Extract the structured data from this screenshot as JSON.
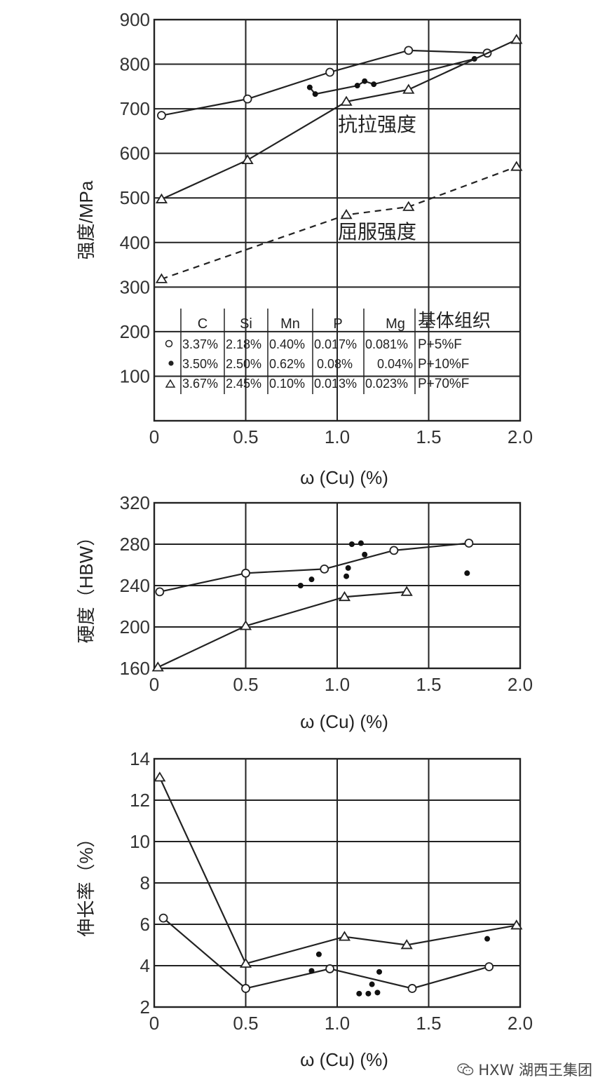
{
  "legend_table": {
    "headers": [
      "",
      "C",
      "Si",
      "Mn",
      "P",
      "Mg",
      "基体组织"
    ],
    "rows": [
      {
        "marker": "open-circle",
        "cells": [
          "3.37%",
          "2.18%",
          "0.40%",
          "0.017%",
          "0.081%",
          "P+5%F"
        ]
      },
      {
        "marker": "filled-dot",
        "cells": [
          "3.50%",
          "2.50%",
          "0.62%",
          "0.08%",
          "0.04%",
          "P+10%F"
        ]
      },
      {
        "marker": "triangle",
        "cells": [
          "3.67%",
          "2.45%",
          "0.10%",
          "0.013%",
          "0.023%",
          "P+70%F"
        ]
      }
    ]
  },
  "watermark": {
    "text": "HXW 湖西王集团",
    "icon": "wechat-icon"
  },
  "chart_data": [
    {
      "type": "line",
      "ylabel": "强度/MPa",
      "xlabel": "ω (Cu) (%)",
      "xlim": [
        0,
        2.0
      ],
      "ylim": [
        0,
        900
      ],
      "x_ticks": [
        "0",
        "0.5",
        "1.0",
        "1.5",
        "2.0"
      ],
      "y_ticks": [
        "100",
        "200",
        "300",
        "400",
        "500",
        "600",
        "700",
        "800",
        "900"
      ],
      "grid": true,
      "annotations": [
        "抗拉强度",
        "屈服强度"
      ],
      "series": [
        {
          "marker": "open-circle",
          "line": "solid",
          "points": [
            [
              0.04,
              685
            ],
            [
              0.51,
              722
            ],
            [
              0.96,
              782
            ],
            [
              1.39,
              831
            ],
            [
              1.82,
              825
            ]
          ]
        },
        {
          "marker": "filled-dot",
          "line": "solid",
          "points": [
            [
              0.85,
              748
            ],
            [
              0.88,
              733
            ],
            [
              1.11,
              752
            ],
            [
              1.15,
              762
            ],
            [
              1.2,
              755
            ],
            [
              1.75,
              812
            ]
          ]
        },
        {
          "marker": "triangle",
          "line": "solid",
          "points": [
            [
              0.04,
              497
            ],
            [
              0.51,
              585
            ],
            [
              1.05,
              716
            ],
            [
              1.39,
              743
            ],
            [
              1.98,
              855
            ]
          ]
        },
        {
          "marker": "triangle",
          "line": "dashed",
          "points": [
            [
              0.04,
              318
            ],
            [
              1.05,
              462
            ],
            [
              1.39,
              480
            ],
            [
              1.98,
              570
            ]
          ]
        }
      ]
    },
    {
      "type": "line",
      "ylabel": "硬度（HBW）",
      "xlabel": "ω (Cu) (%)",
      "xlim": [
        0,
        2.0
      ],
      "ylim": [
        160,
        320
      ],
      "x_ticks": [
        "0",
        "0.5",
        "1.0",
        "1.5",
        "2.0"
      ],
      "y_ticks": [
        "160",
        "200",
        "240",
        "280",
        "320"
      ],
      "grid": true,
      "series": [
        {
          "marker": "open-circle",
          "line": "solid",
          "points": [
            [
              0.03,
              234
            ],
            [
              0.5,
              252
            ],
            [
              0.93,
              256
            ],
            [
              1.31,
              274
            ],
            [
              1.72,
              281
            ]
          ]
        },
        {
          "marker": "filled-dot",
          "line": "none",
          "points": [
            [
              0.8,
              240
            ],
            [
              0.86,
              246
            ],
            [
              1.05,
              249
            ],
            [
              1.06,
              257
            ],
            [
              1.08,
              280
            ],
            [
              1.13,
              281
            ],
            [
              1.15,
              270
            ],
            [
              1.71,
              252
            ]
          ]
        },
        {
          "marker": "triangle",
          "line": "solid",
          "points": [
            [
              0.02,
              161
            ],
            [
              0.5,
              201
            ],
            [
              1.04,
              229
            ],
            [
              1.38,
              234
            ]
          ]
        }
      ]
    },
    {
      "type": "line",
      "ylabel": "伸长率（%）",
      "xlabel": "ω (Cu) (%)",
      "xlim": [
        0,
        2.0
      ],
      "ylim": [
        2,
        14
      ],
      "x_ticks": [
        "0",
        "0.5",
        "1.0",
        "1.5",
        "2.0"
      ],
      "y_ticks": [
        "2",
        "4",
        "6",
        "8",
        "10",
        "12",
        "14"
      ],
      "grid": true,
      "series": [
        {
          "marker": "open-circle",
          "line": "solid",
          "points": [
            [
              0.05,
              6.3
            ],
            [
              0.5,
              2.9
            ],
            [
              0.96,
              3.85
            ],
            [
              1.41,
              2.9
            ],
            [
              1.83,
              3.95
            ]
          ]
        },
        {
          "marker": "filled-dot",
          "line": "none",
          "points": [
            [
              0.86,
              3.75
            ],
            [
              0.9,
              4.55
            ],
            [
              1.12,
              2.65
            ],
            [
              1.17,
              2.65
            ],
            [
              1.19,
              3.1
            ],
            [
              1.22,
              2.7
            ],
            [
              1.23,
              3.7
            ],
            [
              1.82,
              5.3
            ]
          ]
        },
        {
          "marker": "triangle",
          "line": "solid",
          "points": [
            [
              0.03,
              13.1
            ],
            [
              0.5,
              4.1
            ],
            [
              1.04,
              5.4
            ],
            [
              1.38,
              5.0
            ],
            [
              1.98,
              5.95
            ]
          ]
        }
      ]
    }
  ]
}
